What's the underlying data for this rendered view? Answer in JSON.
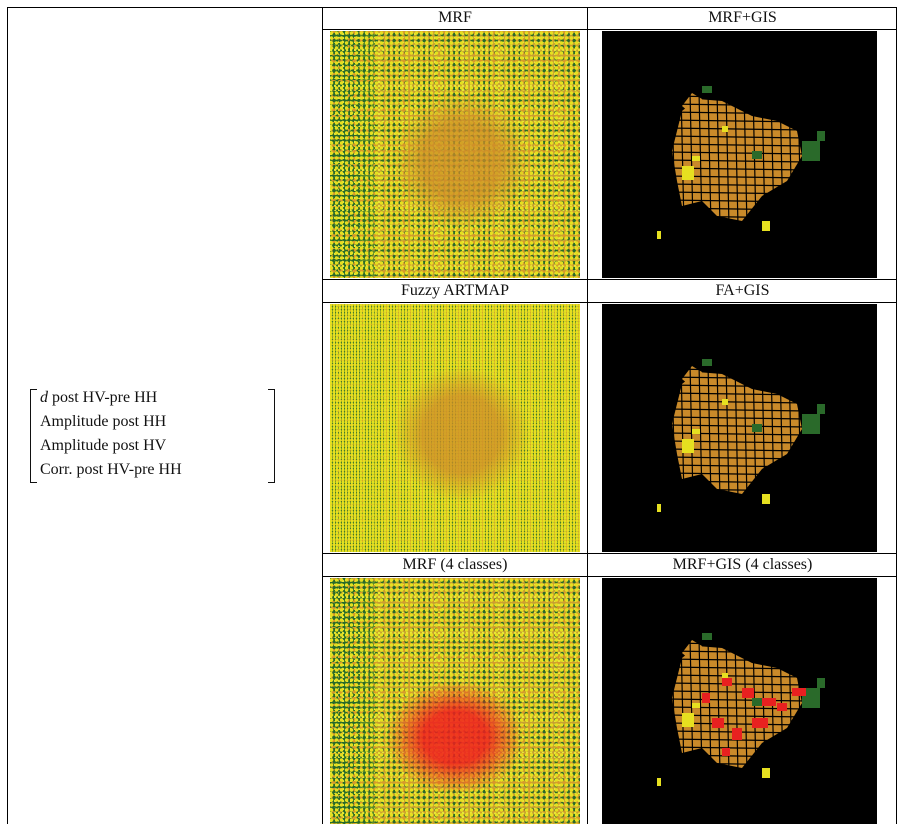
{
  "matrix": {
    "lines": [
      {
        "variable": "d",
        "text": "post HV-pre HH"
      },
      {
        "text": "Amplitude post HH"
      },
      {
        "text": "Amplitude post HV"
      },
      {
        "text": "Corr. post HV-pre HH"
      }
    ]
  },
  "table": {
    "rows": [
      [
        "MRF",
        "MRF+GIS"
      ],
      [
        "Fuzzy ARTMAP",
        "FA+GIS"
      ],
      [
        "MRF (4 classes)",
        "MRF+GIS (4 classes)"
      ]
    ]
  }
}
